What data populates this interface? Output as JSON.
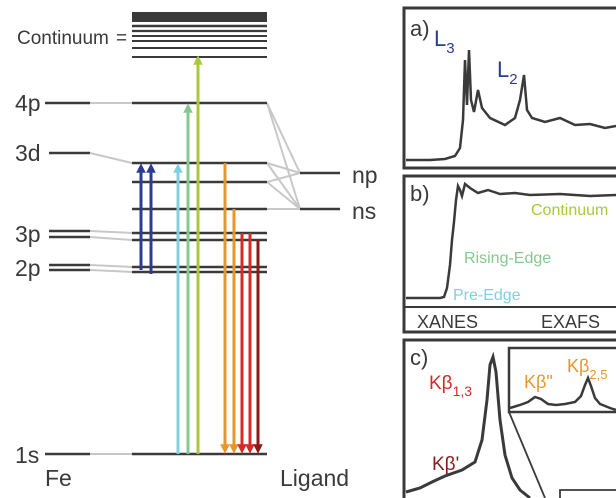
{
  "energy_diagram": {
    "metal_levels": [
      "4p",
      "3d",
      "3p",
      "2p",
      "1s"
    ],
    "continuum_label": "Continuum",
    "ligand_levels": [
      "np",
      "ns"
    ],
    "metal_label": "Fe",
    "ligand_label": "Ligand"
  },
  "panels": {
    "a": {
      "label": "a)",
      "edges": [
        {
          "name": "L",
          "sub": "3",
          "color": "#2b3d93"
        },
        {
          "name": "L",
          "sub": "2",
          "color": "#2b3d93"
        }
      ]
    },
    "b": {
      "label": "b)",
      "annotations": [
        {
          "text": "Continuum",
          "color": "#a8c93a"
        },
        {
          "text": "Rising-Edge",
          "color": "#86c98f"
        },
        {
          "text": "Pre-Edge",
          "color": "#7fd0e0"
        }
      ],
      "regions": [
        "XANES",
        "EXAFS"
      ]
    },
    "c": {
      "label": "c)",
      "lines": [
        {
          "main": "Kβ",
          "sub": "1,3",
          "color": "#d42a2a"
        },
        {
          "main": "Kβ'",
          "sub": "",
          "color": "#8b1a1a"
        }
      ],
      "inset_lines": [
        {
          "main": "Kβ\"",
          "sub": "",
          "color": "#e8962a"
        },
        {
          "main": "Kβ",
          "sub": "2,5",
          "color": "#e8962a"
        }
      ]
    }
  },
  "colors": {
    "level": "#3a3a3a",
    "connector": "#c8c8c8",
    "dark_blue": "#2b3d93",
    "light_blue": "#7fd0e0",
    "light_green": "#86c98f",
    "yellow_green": "#a8c93a",
    "orange": "#e8962a",
    "red": "#d42a2a",
    "dark_red": "#8b1a1a"
  }
}
